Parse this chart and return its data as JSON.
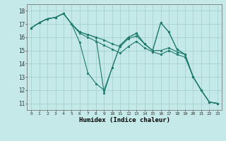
{
  "xlabel": "Humidex (Indice chaleur)",
  "background_color": "#c5e8e8",
  "grid_color": "#a0cccc",
  "line_color": "#1e7b6e",
  "xlim": [
    -0.5,
    23.5
  ],
  "ylim": [
    10.5,
    18.5
  ],
  "yticks": [
    11,
    12,
    13,
    14,
    15,
    16,
    17,
    18
  ],
  "xticks": [
    0,
    1,
    2,
    3,
    4,
    5,
    6,
    7,
    8,
    9,
    10,
    11,
    12,
    13,
    14,
    15,
    16,
    17,
    18,
    19,
    20,
    21,
    22,
    23
  ],
  "lines": [
    [
      16.7,
      17.1,
      17.4,
      17.5,
      17.8,
      17.0,
      15.6,
      13.3,
      12.5,
      12.0,
      13.7,
      15.4,
      16.0,
      16.3,
      15.5,
      15.0,
      17.1,
      16.4,
      15.1,
      14.7,
      13.0,
      12.0,
      11.1,
      11.0
    ],
    [
      16.7,
      17.1,
      17.4,
      17.5,
      17.8,
      17.0,
      16.4,
      16.2,
      16.0,
      15.8,
      15.5,
      15.3,
      15.9,
      16.1,
      15.5,
      15.0,
      15.0,
      15.2,
      14.9,
      14.7,
      13.0,
      12.0,
      11.1,
      11.0
    ],
    [
      16.7,
      17.1,
      17.4,
      17.5,
      17.8,
      17.0,
      16.4,
      16.2,
      16.0,
      11.8,
      13.7,
      15.4,
      16.0,
      16.3,
      15.5,
      15.0,
      17.1,
      16.4,
      15.1,
      14.7,
      13.0,
      12.0,
      11.1,
      11.0
    ],
    [
      16.7,
      17.1,
      17.4,
      17.5,
      17.8,
      17.0,
      16.3,
      16.0,
      15.7,
      15.4,
      15.1,
      14.8,
      15.3,
      15.7,
      15.2,
      14.9,
      14.7,
      15.0,
      14.7,
      14.5,
      13.0,
      12.0,
      11.1,
      11.0
    ]
  ]
}
